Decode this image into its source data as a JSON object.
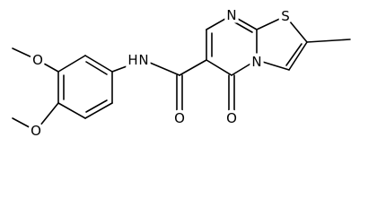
{
  "atoms": [
    "O",
    "O",
    "N",
    "H",
    "O",
    "O",
    "N",
    "S",
    "N"
  ]
}
